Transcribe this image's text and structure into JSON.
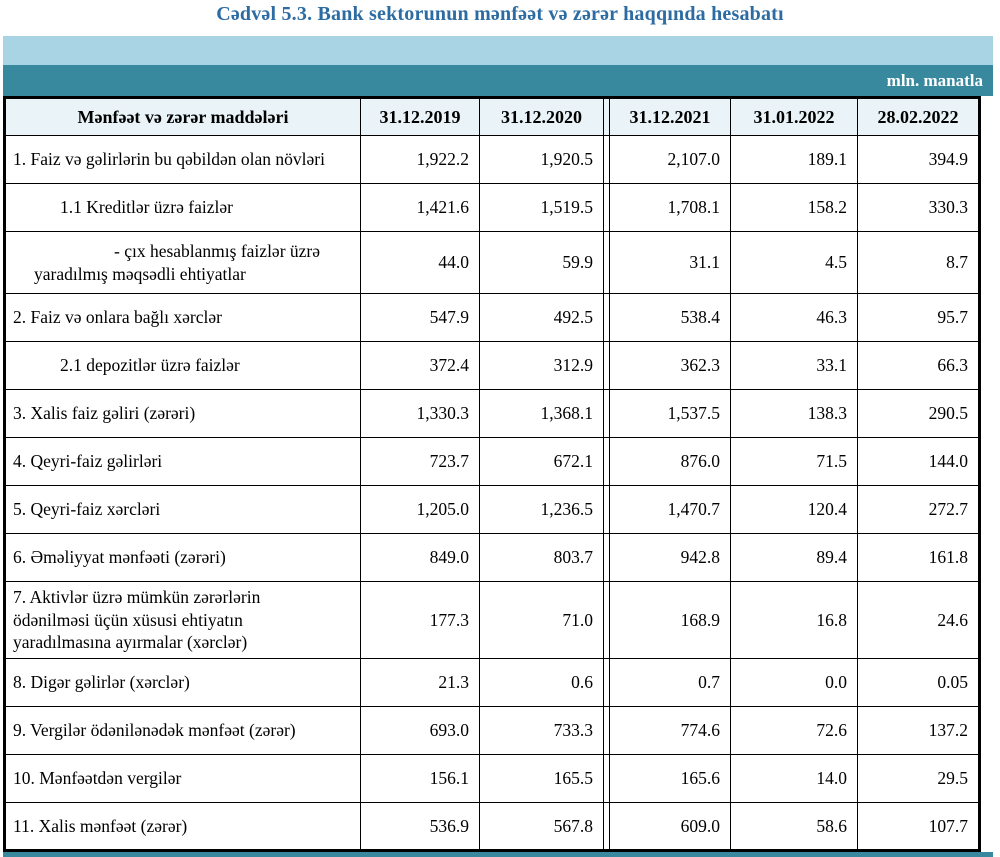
{
  "title": "Cədvəl 5.3. Bank sektorunun mənfəət və zərər haqqında hesabatı",
  "unit_label": "mln. manatla",
  "columns": {
    "row_header": "Mənfəət və zərər maddələri",
    "dates": [
      "31.12.2019",
      "31.12.2020",
      "31.12.2021",
      "31.01.2022",
      "28.02.2022"
    ]
  },
  "rows": [
    {
      "label": "1. Faiz və gəlirlərin bu qəbildən olan növləri",
      "indent": "none",
      "values": [
        "1,922.2",
        "1,920.5",
        "2,107.0",
        "189.1",
        "394.9"
      ]
    },
    {
      "label": "1.1 Kreditlər üzrə faizlər",
      "indent": "sub",
      "values": [
        "1,421.6",
        "1,519.5",
        "1,708.1",
        "158.2",
        "330.3"
      ]
    },
    {
      "label": "-  çıx hesablanmış faizlər üzrə\nyaradılmış məqsədli ehtiyatlar",
      "indent": "hang",
      "values": [
        "44.0",
        "59.9",
        "31.1",
        "4.5",
        "8.7"
      ]
    },
    {
      "label": "2. Faiz və onlara bağlı xərclər",
      "indent": "none",
      "values": [
        "547.9",
        "492.5",
        "538.4",
        "46.3",
        "95.7"
      ]
    },
    {
      "label": "2.1 depozitlər üzrə faizlər",
      "indent": "sub",
      "values": [
        "372.4",
        "312.9",
        "362.3",
        "33.1",
        "66.3"
      ]
    },
    {
      "label": "3. Xalis faiz gəliri (zərəri)",
      "indent": "none",
      "values": [
        "1,330.3",
        "1,368.1",
        "1,537.5",
        "138.3",
        "290.5"
      ]
    },
    {
      "label": "4. Qeyri-faiz gəlirləri",
      "indent": "none",
      "values": [
        "723.7",
        "672.1",
        "876.0",
        "71.5",
        "144.0"
      ]
    },
    {
      "label": "5. Qeyri-faiz xərcləri",
      "indent": "none",
      "values": [
        "1,205.0",
        "1,236.5",
        "1,470.7",
        "120.4",
        "272.7"
      ]
    },
    {
      "label": "6. Əməliyyat mənfəəti (zərəri)",
      "indent": "none",
      "values": [
        "849.0",
        "803.7",
        "942.8",
        "89.4",
        "161.8"
      ]
    },
    {
      "label": "7. Aktivlər üzrə mümkün zərərlərin\nödənilməsi üçün xüsusi ehtiyatın\nyaradılmasına ayırmalar (xərclər)",
      "indent": "none",
      "values": [
        "177.3",
        "71.0",
        "168.9",
        "16.8",
        "24.6"
      ]
    },
    {
      "label": "8. Digər gəlirlər (xərclər)",
      "indent": "none",
      "values": [
        "21.3",
        "0.6",
        "0.7",
        "0.0",
        "0.05"
      ]
    },
    {
      "label": "9. Vergilər ödənilənədək mənfəət (zərər)",
      "indent": "none",
      "values": [
        "693.0",
        "733.3",
        "774.6",
        "72.6",
        "137.2"
      ]
    },
    {
      "label": "10. Mənfəətdən vergilər",
      "indent": "none",
      "values": [
        "156.1",
        "165.5",
        "165.6",
        "14.0",
        "29.5"
      ]
    },
    {
      "label": "11. Xalis mənfəət (zərər)",
      "indent": "none",
      "values": [
        "536.9",
        "567.8",
        "609.0",
        "58.6",
        "107.7"
      ]
    }
  ],
  "colors": {
    "title_blue": "#2d6ca2",
    "band_light_blue": "#a9d4e3",
    "band_teal": "#39899e",
    "header_cell_bg": "#e9f3f8",
    "border": "#000000",
    "unit_label_text": "#ffffff"
  }
}
